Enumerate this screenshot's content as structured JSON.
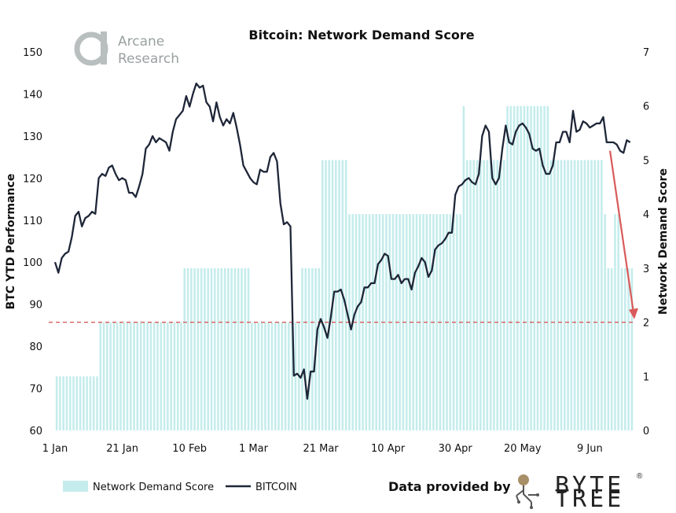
{
  "chart_data": {
    "type": "bar+line",
    "title": "Bitcoin: Network Demand Score",
    "ylabel_left": "BTC YTD Performance",
    "ylabel_right": "Network Demand Score",
    "ylim_left": [
      60,
      150
    ],
    "ylim_right": [
      0,
      7
    ],
    "yticks_left": [
      "60",
      "70",
      "80",
      "90",
      "100",
      "110",
      "120",
      "130",
      "140",
      "150"
    ],
    "yticks_right": [
      "0",
      "1",
      "2",
      "3",
      "4",
      "5",
      "6",
      "7"
    ],
    "x_days": 172,
    "xticks": [
      {
        "day": 0,
        "label": "1 Jan"
      },
      {
        "day": 20,
        "label": "21 Jan"
      },
      {
        "day": 40,
        "label": "10 Feb"
      },
      {
        "day": 59,
        "label": "1 Mar"
      },
      {
        "day": 79,
        "label": "21 Mar"
      },
      {
        "day": 99,
        "label": "10 Apr"
      },
      {
        "day": 119,
        "label": "30 Apr"
      },
      {
        "day": 139,
        "label": "20 May"
      },
      {
        "day": 159,
        "label": "9 Jun"
      }
    ],
    "threshold": 2,
    "score_segments": [
      {
        "from": 0,
        "to": 13,
        "value": 1
      },
      {
        "from": 13,
        "to": 38,
        "value": 2
      },
      {
        "from": 38,
        "to": 58,
        "value": 3
      },
      {
        "from": 58,
        "to": 73,
        "value": 2
      },
      {
        "from": 73,
        "to": 79,
        "value": 3
      },
      {
        "from": 79,
        "to": 87,
        "value": 5
      },
      {
        "from": 87,
        "to": 113,
        "value": 4
      },
      {
        "from": 113,
        "to": 121,
        "value": 4
      },
      {
        "from": 121,
        "to": 122,
        "value": 6
      },
      {
        "from": 122,
        "to": 134,
        "value": 5
      },
      {
        "from": 134,
        "to": 147,
        "value": 6
      },
      {
        "from": 147,
        "to": 163,
        "value": 5
      },
      {
        "from": 163,
        "to": 164,
        "value": 4
      },
      {
        "from": 164,
        "to": 166,
        "value": 3
      },
      {
        "from": 166,
        "to": 168,
        "value": 4
      },
      {
        "from": 168,
        "to": 169,
        "value": 3
      },
      {
        "from": 169,
        "to": 172,
        "value": 3
      }
    ],
    "series": [
      {
        "name": "BITCOIN",
        "axis": "left",
        "points": [
          [
            0,
            100
          ],
          [
            1,
            97.5
          ],
          [
            2,
            101
          ],
          [
            3,
            102
          ],
          [
            4,
            102.5
          ],
          [
            5,
            106
          ],
          [
            6,
            111
          ],
          [
            7,
            112
          ],
          [
            8,
            108.5
          ],
          [
            9,
            110.5
          ],
          [
            10,
            111
          ],
          [
            11,
            112
          ],
          [
            12,
            111.5
          ],
          [
            13,
            120
          ],
          [
            14,
            121
          ],
          [
            15,
            120.5
          ],
          [
            16,
            122.5
          ],
          [
            17,
            123
          ],
          [
            18,
            121
          ],
          [
            19,
            119.5
          ],
          [
            20,
            120
          ],
          [
            21,
            119.5
          ],
          [
            22,
            116.5
          ],
          [
            23,
            116.5
          ],
          [
            24,
            115.5
          ],
          [
            25,
            118
          ],
          [
            26,
            121
          ],
          [
            27,
            127
          ],
          [
            28,
            128
          ],
          [
            29,
            130
          ],
          [
            30,
            128.5
          ],
          [
            31,
            129.5
          ],
          [
            32,
            129
          ],
          [
            33,
            128.5
          ],
          [
            34,
            126.5
          ],
          [
            35,
            131
          ],
          [
            36,
            134
          ],
          [
            37,
            135
          ],
          [
            38,
            136
          ],
          [
            39,
            139.5
          ],
          [
            40,
            137
          ],
          [
            41,
            140
          ],
          [
            42,
            142.5
          ],
          [
            43,
            141.5
          ],
          [
            44,
            142
          ],
          [
            45,
            138
          ],
          [
            46,
            137
          ],
          [
            47,
            133.5
          ],
          [
            48,
            138
          ],
          [
            49,
            134.5
          ],
          [
            50,
            132.5
          ],
          [
            51,
            134
          ],
          [
            52,
            133
          ],
          [
            53,
            135.5
          ],
          [
            54,
            132
          ],
          [
            55,
            128
          ],
          [
            56,
            123
          ],
          [
            57,
            121.5
          ],
          [
            58,
            120
          ],
          [
            59,
            119
          ],
          [
            60,
            118.5
          ],
          [
            61,
            122
          ],
          [
            62,
            121.5
          ],
          [
            63,
            121.5
          ],
          [
            64,
            125
          ],
          [
            65,
            126
          ],
          [
            66,
            124
          ],
          [
            67,
            114
          ],
          [
            68,
            109
          ],
          [
            69,
            109.5
          ],
          [
            70,
            108.5
          ],
          [
            71,
            73
          ],
          [
            72,
            73.5
          ],
          [
            73,
            72.5
          ],
          [
            74,
            74.5
          ],
          [
            75,
            67.5
          ],
          [
            76,
            74
          ],
          [
            77,
            74
          ],
          [
            78,
            84
          ],
          [
            79,
            86.5
          ],
          [
            80,
            84.5
          ],
          [
            81,
            82
          ],
          [
            82,
            87
          ],
          [
            83,
            93
          ],
          [
            84,
            93
          ],
          [
            85,
            93.5
          ],
          [
            86,
            91
          ],
          [
            87,
            87.5
          ],
          [
            88,
            84
          ],
          [
            89,
            87.5
          ],
          [
            90,
            89.5
          ],
          [
            91,
            90.5
          ],
          [
            92,
            94
          ],
          [
            93,
            94
          ],
          [
            94,
            95
          ],
          [
            95,
            95
          ],
          [
            96,
            99.5
          ],
          [
            97,
            100.5
          ],
          [
            98,
            102
          ],
          [
            99,
            101.5
          ],
          [
            100,
            96
          ],
          [
            101,
            96
          ],
          [
            102,
            97
          ],
          [
            103,
            95
          ],
          [
            104,
            96
          ],
          [
            105,
            96
          ],
          [
            106,
            93.5
          ],
          [
            107,
            97.5
          ],
          [
            108,
            99
          ],
          [
            109,
            101
          ],
          [
            110,
            100
          ],
          [
            111,
            96.5
          ],
          [
            112,
            98
          ],
          [
            113,
            103
          ],
          [
            114,
            104
          ],
          [
            115,
            104.5
          ],
          [
            116,
            105.5
          ],
          [
            117,
            107
          ],
          [
            118,
            107
          ],
          [
            119,
            116
          ],
          [
            120,
            118
          ],
          [
            121,
            118.5
          ],
          [
            122,
            119.5
          ],
          [
            123,
            120
          ],
          [
            124,
            119
          ],
          [
            125,
            118.5
          ],
          [
            126,
            121
          ],
          [
            127,
            130
          ],
          [
            128,
            132.5
          ],
          [
            129,
            131
          ],
          [
            130,
            120
          ],
          [
            131,
            118.5
          ],
          [
            132,
            120
          ],
          [
            133,
            127
          ],
          [
            134,
            132.5
          ],
          [
            135,
            128.5
          ],
          [
            136,
            128
          ],
          [
            137,
            131
          ],
          [
            138,
            132.5
          ],
          [
            139,
            133
          ],
          [
            140,
            132
          ],
          [
            141,
            130.5
          ],
          [
            142,
            127
          ],
          [
            143,
            126.5
          ],
          [
            144,
            127
          ],
          [
            145,
            123
          ],
          [
            146,
            121
          ],
          [
            147,
            121
          ],
          [
            148,
            123
          ],
          [
            149,
            128.5
          ],
          [
            150,
            128.5
          ],
          [
            151,
            131
          ],
          [
            152,
            131
          ],
          [
            153,
            128.5
          ],
          [
            154,
            136
          ],
          [
            155,
            131
          ],
          [
            156,
            131.5
          ],
          [
            157,
            133.5
          ],
          [
            158,
            133
          ],
          [
            159,
            132
          ],
          [
            160,
            132.5
          ],
          [
            161,
            133
          ],
          [
            162,
            133
          ],
          [
            163,
            134.5
          ],
          [
            164,
            128.5
          ],
          [
            165,
            128.5
          ],
          [
            166,
            128.5
          ],
          [
            167,
            128
          ],
          [
            168,
            126.5
          ],
          [
            169,
            126
          ],
          [
            170,
            129
          ],
          [
            171,
            128.5
          ]
        ]
      }
    ],
    "legend": {
      "score_label": "Network Demand Score",
      "btc_label": "BITCOIN"
    },
    "branding": {
      "logo_line1": "Arcane",
      "logo_line2": "Research",
      "credit": "Data provided by",
      "tree_line1": "BYTE",
      "tree_line2": "TREE"
    },
    "colors": {
      "bar": "#c5ecec",
      "line": "#1e2638",
      "threshold": "#d95a5a",
      "arrow": "#d95a5a",
      "logo": "#b9bfbf"
    }
  }
}
